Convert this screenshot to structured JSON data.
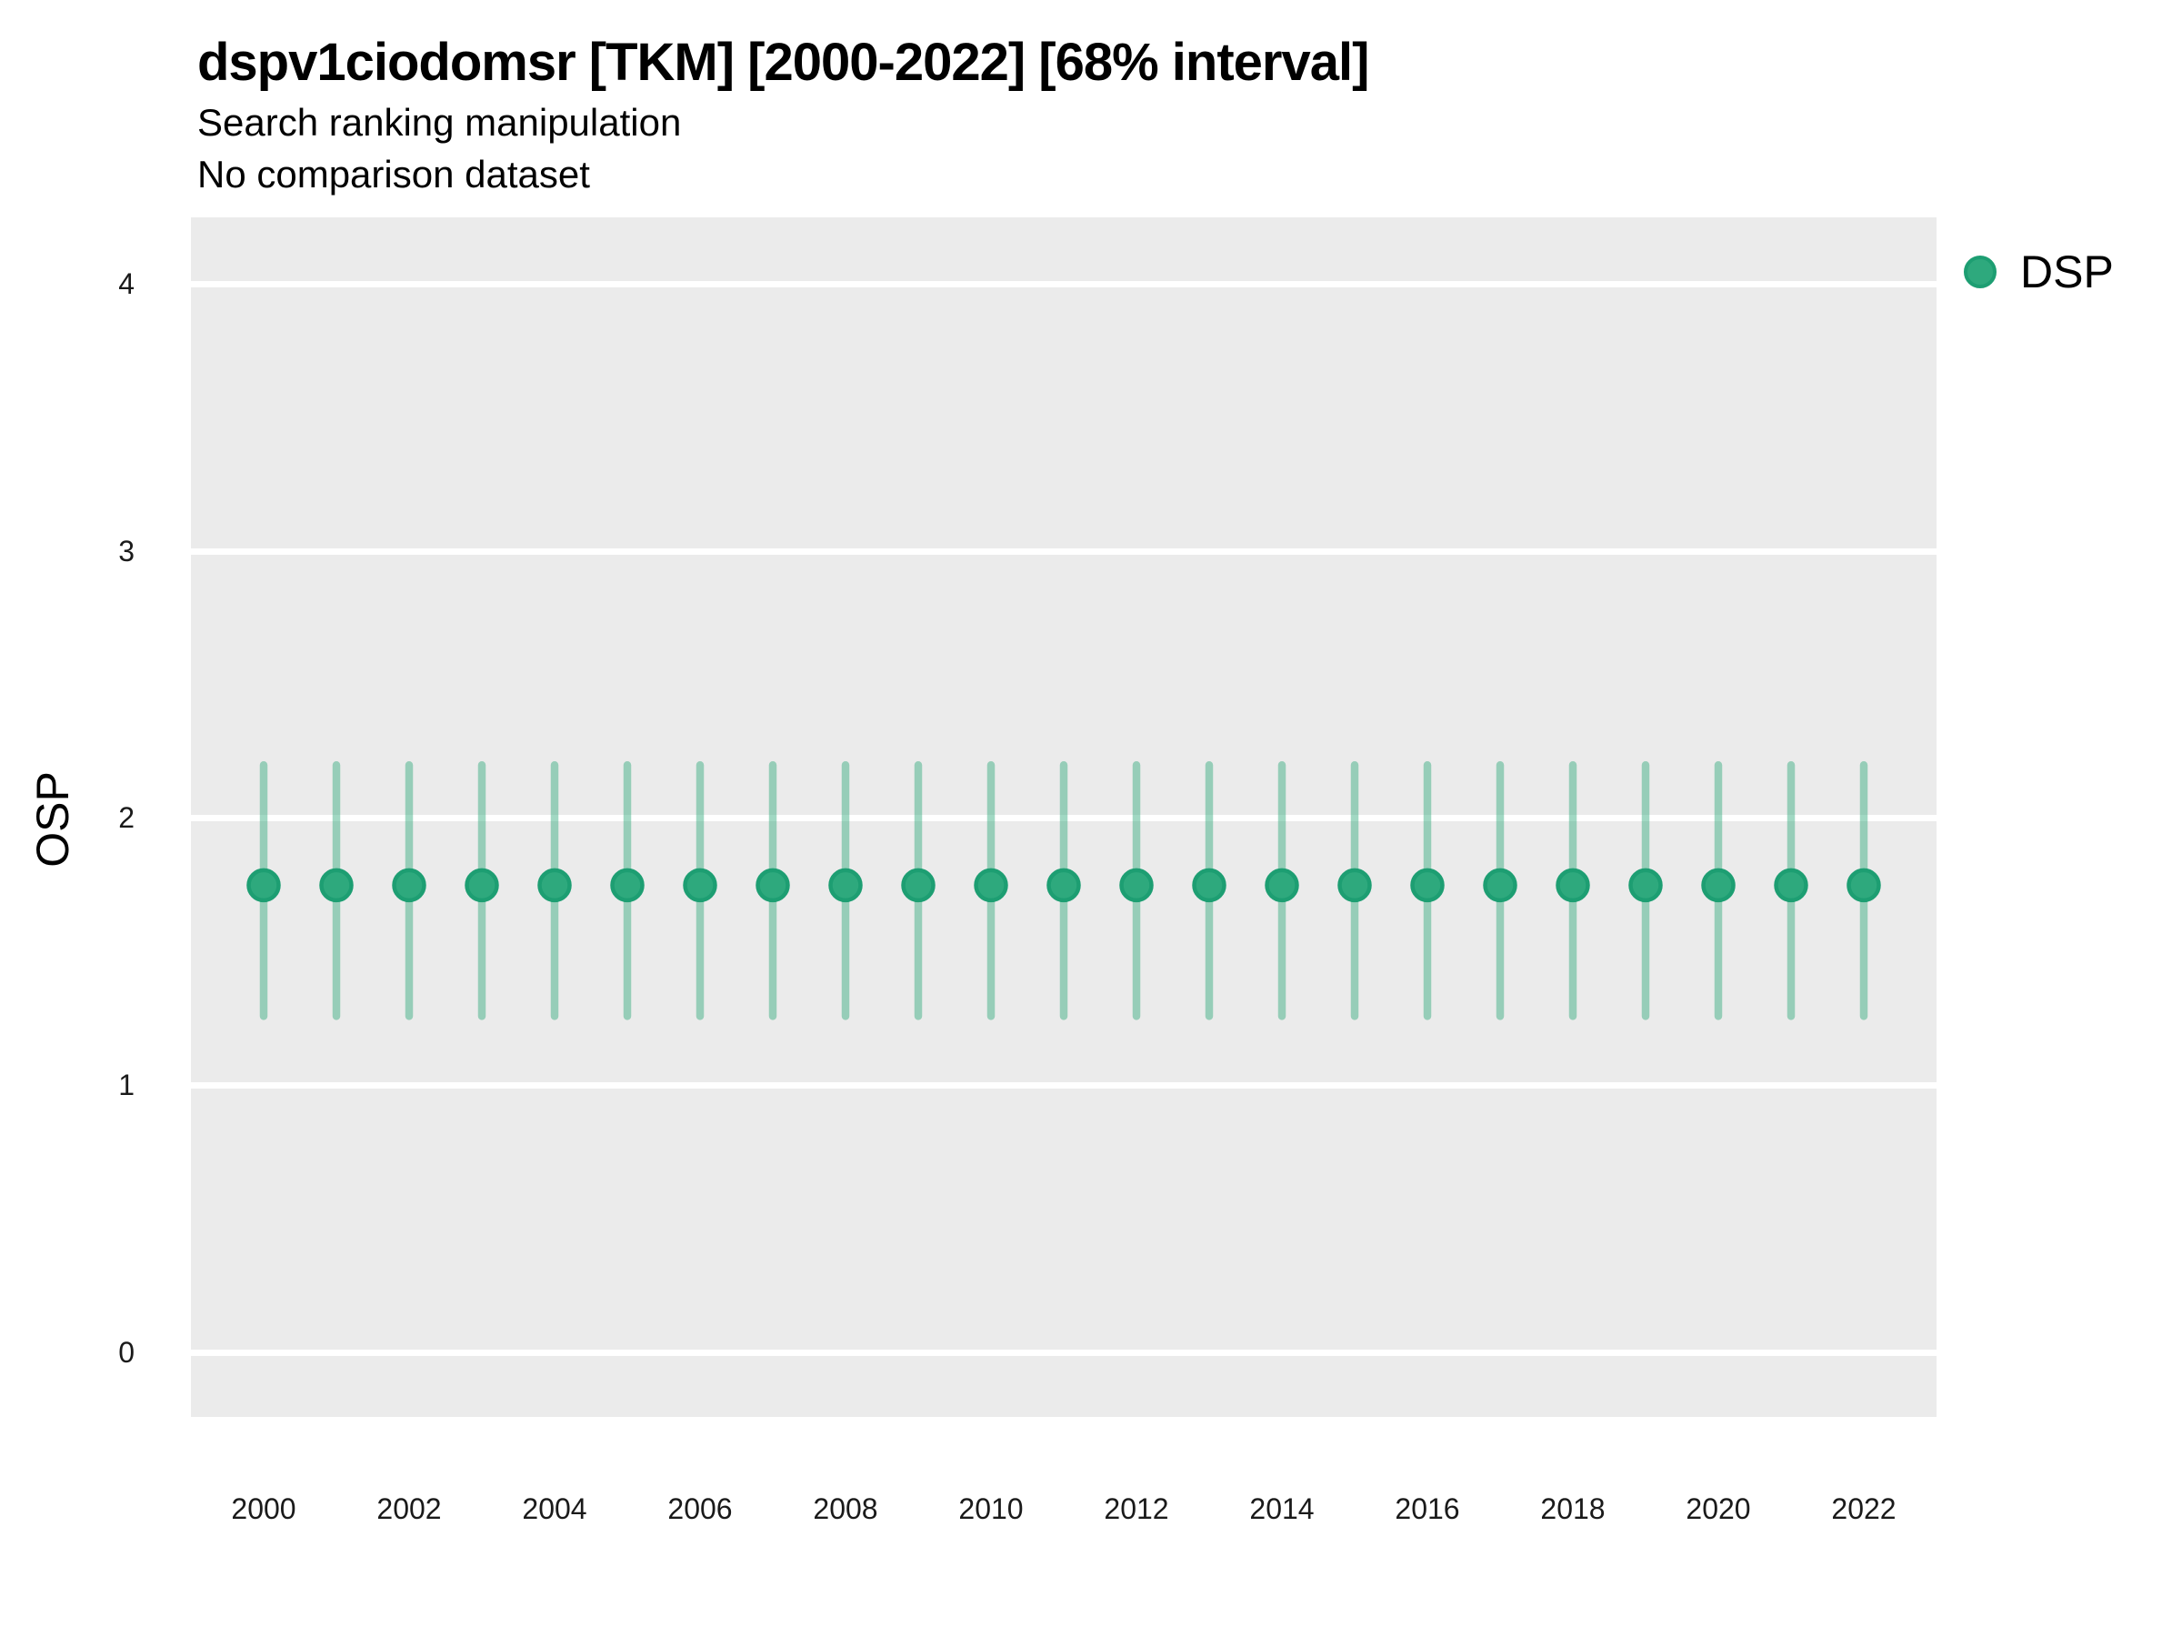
{
  "header": {
    "title": "dspv1ciodomsr [TKM] [2000-2022] [68% interval]",
    "subtitle": "Search ranking manipulation",
    "caption": "No comparison dataset"
  },
  "legend": {
    "label": "DSP",
    "swatch_color": "#2EA97D",
    "swatch_edge_color": "#1D9E72"
  },
  "colors": {
    "panel_background": "#EBEBEB",
    "gridline": "#FFFFFF",
    "point_fill": "#2EA97D",
    "point_edge": "#1D9E72",
    "interval_line": "rgba(46,169,122,0.45)",
    "text": "#000000"
  },
  "chart_data": {
    "type": "scatter",
    "title": "dspv1ciodomsr [TKM] [2000-2022] [68% interval]",
    "subtitle": "Search ranking manipulation",
    "note": "No comparison dataset",
    "xlabel": "",
    "ylabel": "OSP",
    "interval_level": "68%",
    "grid": "horizontal major gridlines, white on gray panel",
    "legend_position": "right-top",
    "xlim": [
      1999,
      2023
    ],
    "ylim": [
      -0.24,
      4.25
    ],
    "x_ticks": [
      2000,
      2002,
      2004,
      2006,
      2008,
      2010,
      2012,
      2014,
      2016,
      2018,
      2020,
      2022
    ],
    "y_ticks": [
      0,
      1,
      2,
      3,
      4
    ],
    "series": [
      {
        "name": "DSP",
        "color": "#2EA97D",
        "edge_color": "#1D9E72",
        "interval_color": "rgba(46,169,122,0.45)",
        "x": [
          2000,
          2001,
          2002,
          2003,
          2004,
          2005,
          2006,
          2007,
          2008,
          2009,
          2010,
          2011,
          2012,
          2013,
          2014,
          2015,
          2016,
          2017,
          2018,
          2019,
          2020,
          2021,
          2022
        ],
        "y": [
          1.75,
          1.75,
          1.75,
          1.75,
          1.75,
          1.75,
          1.75,
          1.75,
          1.75,
          1.75,
          1.75,
          1.75,
          1.75,
          1.75,
          1.75,
          1.75,
          1.75,
          1.75,
          1.75,
          1.75,
          1.75,
          1.75,
          1.75
        ],
        "y_lo": [
          1.26,
          1.26,
          1.26,
          1.26,
          1.26,
          1.26,
          1.26,
          1.26,
          1.26,
          1.26,
          1.26,
          1.26,
          1.26,
          1.26,
          1.26,
          1.26,
          1.26,
          1.26,
          1.26,
          1.26,
          1.26,
          1.26,
          1.26
        ],
        "y_hi": [
          2.2,
          2.2,
          2.2,
          2.2,
          2.2,
          2.2,
          2.2,
          2.2,
          2.2,
          2.2,
          2.2,
          2.2,
          2.2,
          2.2,
          2.2,
          2.2,
          2.2,
          2.2,
          2.2,
          2.2,
          2.2,
          2.2,
          2.2
        ]
      }
    ]
  }
}
